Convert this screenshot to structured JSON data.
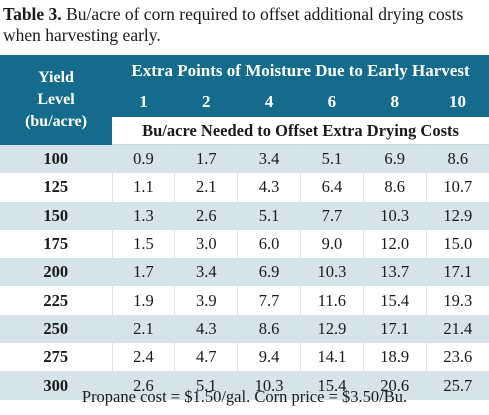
{
  "caption": {
    "label": "Table 3.",
    "text": " Bu/acre of corn required to offset additional drying costs when harvesting early."
  },
  "table": {
    "yield_header_lines": [
      "Yield",
      "Level",
      "(bu/acre)"
    ],
    "extra_header": "Extra Points of Moisture Due to Early Harvest",
    "moisture_points": [
      "1",
      "2",
      "4",
      "6",
      "8",
      "10"
    ],
    "sub_header": "Bu/acre Needed to Offset Extra Drying Costs",
    "rows": [
      {
        "yield": "100",
        "values": [
          "0.9",
          "1.7",
          "3.4",
          "5.1",
          "6.9",
          "8.6"
        ]
      },
      {
        "yield": "125",
        "values": [
          "1.1",
          "2.1",
          "4.3",
          "6.4",
          "8.6",
          "10.7"
        ]
      },
      {
        "yield": "150",
        "values": [
          "1.3",
          "2.6",
          "5.1",
          "7.7",
          "10.3",
          "12.9"
        ]
      },
      {
        "yield": "175",
        "values": [
          "1.5",
          "3.0",
          "6.0",
          "9.0",
          "12.0",
          "15.0"
        ]
      },
      {
        "yield": "200",
        "values": [
          "1.7",
          "3.4",
          "6.9",
          "10.3",
          "13.7",
          "17.1"
        ]
      },
      {
        "yield": "225",
        "values": [
          "1.9",
          "3.9",
          "7.7",
          "11.6",
          "15.4",
          "19.3"
        ]
      },
      {
        "yield": "250",
        "values": [
          "2.1",
          "4.3",
          "8.6",
          "12.9",
          "17.1",
          "21.4"
        ]
      },
      {
        "yield": "275",
        "values": [
          "2.4",
          "4.7",
          "9.4",
          "14.1",
          "18.9",
          "23.6"
        ]
      },
      {
        "yield": "300",
        "values": [
          "2.6",
          "5.1",
          "10.3",
          "15.4",
          "20.6",
          "25.7"
        ]
      }
    ]
  },
  "footer": "Propane cost = $1.50/gal. Corn price = $3.50/Bu.",
  "colors": {
    "header_bg": "#156b8c",
    "row_shade": "#d6e3ea"
  }
}
